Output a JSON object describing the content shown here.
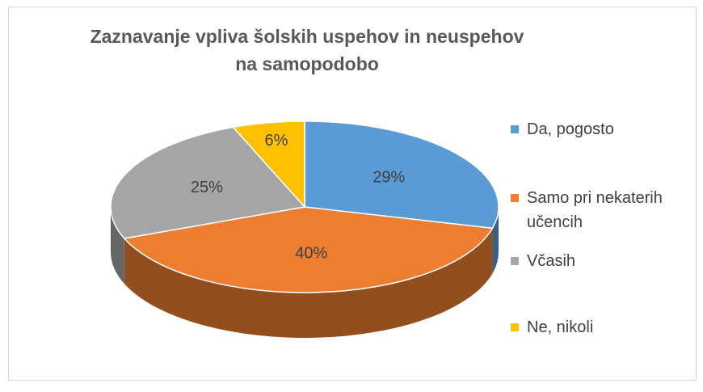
{
  "chart_data": {
    "type": "pie",
    "title": "Zaznavanje vpliva šolskih uspehov in neuspehov na samopodobo",
    "categories": [
      "Da, pogosto",
      "Samo pri nekaterih učencih",
      "Včasih",
      "Ne, nikoli"
    ],
    "values": [
      29,
      40,
      25,
      6
    ],
    "value_labels": [
      "29%",
      "40%",
      "25%",
      "6%"
    ],
    "colors": [
      "#5b9bd5",
      "#ed7d31",
      "#a5a5a5",
      "#ffc000"
    ],
    "legend": "right"
  }
}
